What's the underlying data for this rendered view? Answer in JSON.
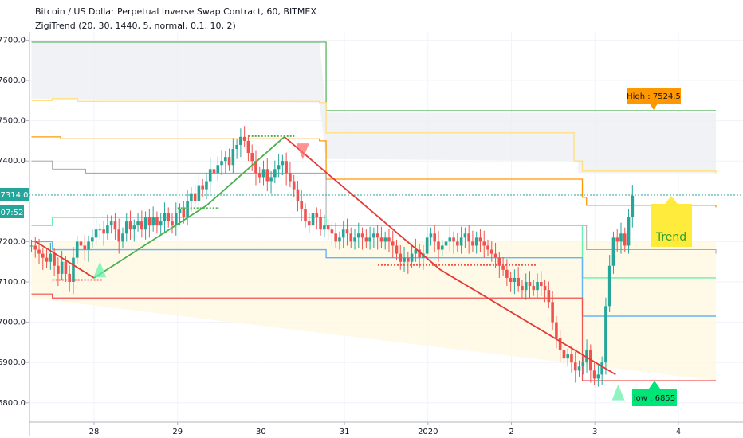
{
  "header": {
    "title": "Bitcoin / US Dollar Perpetual Inverse Swap Contract, 60, BITMEX",
    "indicator": "ZigiTrend (20, 30, 1440, 5, normal, 0.1, 10, 2)"
  },
  "price_scale": {
    "last_price_label": "7314.0",
    "countdown_label": "07:52",
    "last_price_color": "#26a69a"
  },
  "labels": {
    "high": "High : 7524.5",
    "low": "low : 6855",
    "trend": "Trend"
  },
  "colors": {
    "bull": "#26a69a",
    "bear": "#ef5350",
    "green_line": "#4caf50",
    "red_line": "#e53935",
    "orange": "#ff9800",
    "yellow": "#ffe082",
    "blue": "#64b5f6",
    "mint": "#69f0ae",
    "high_box": "#ff9800",
    "low_box": "#00e676",
    "trend_box": "#ffeb3b",
    "trend_text": "#2e9e2e"
  },
  "chart_data": {
    "type": "candlestick",
    "ylim": [
      6770,
      7760
    ],
    "xlim": [
      27.25,
      4.8
    ],
    "y_ticks": [
      {
        "v": 7700,
        "label": "7700.0"
      },
      {
        "v": 7600,
        "label": "7600.0"
      },
      {
        "v": 7500,
        "label": "7500.0"
      },
      {
        "v": 7400,
        "label": "7400.0"
      },
      {
        "v": 7200,
        "label": "7200.0"
      },
      {
        "v": 7100,
        "label": "7100.0"
      },
      {
        "v": 7000,
        "label": "7000.0"
      },
      {
        "v": 6900,
        "label": "6900.0"
      },
      {
        "v": 6800,
        "label": "6800.0"
      }
    ],
    "x_ticks": [
      {
        "d": 28,
        "label": "28"
      },
      {
        "d": 29,
        "label": "29"
      },
      {
        "d": 30,
        "label": "30"
      },
      {
        "d": 31,
        "label": "31"
      },
      {
        "d": 32,
        "label": "2020"
      },
      {
        "d": 33,
        "label": "2"
      },
      {
        "d": 34,
        "label": "3"
      },
      {
        "d": 35,
        "label": "4"
      }
    ],
    "high": 7524.5,
    "low": 6855,
    "last_price": 7314.0,
    "closes": [
      7190,
      7180,
      7170,
      7160,
      7150,
      7170,
      7140,
      7120,
      7150,
      7120,
      7100,
      7160,
      7200,
      7190,
      7180,
      7200,
      7210,
      7230,
      7230,
      7220,
      7240,
      7250,
      7230,
      7200,
      7220,
      7250,
      7230,
      7240,
      7250,
      7230,
      7260,
      7240,
      7260,
      7240,
      7250,
      7270,
      7250,
      7240,
      7270,
      7280,
      7260,
      7300,
      7320,
      7300,
      7340,
      7330,
      7350,
      7380,
      7370,
      7390,
      7400,
      7410,
      7390,
      7430,
      7440,
      7460,
      7450,
      7420,
      7400,
      7370,
      7360,
      7380,
      7350,
      7360,
      7380,
      7390,
      7400,
      7370,
      7350,
      7330,
      7300,
      7280,
      7250,
      7240,
      7270,
      7260,
      7230,
      7240,
      7230,
      7220,
      7200,
      7210,
      7230,
      7220,
      7200,
      7210,
      7220,
      7210,
      7200,
      7210,
      7220,
      7210,
      7200,
      7210,
      7200,
      7190,
      7170,
      7150,
      7160,
      7150,
      7170,
      7180,
      7160,
      7170,
      7210,
      7220,
      7200,
      7180,
      7190,
      7200,
      7210,
      7200,
      7190,
      7210,
      7220,
      7200,
      7190,
      7210,
      7200,
      7190,
      7180,
      7170,
      7160,
      7140,
      7130,
      7110,
      7100,
      7110,
      7090,
      7080,
      7100,
      7090,
      7080,
      7100,
      7090,
      7080,
      7050,
      7000,
      6960,
      6930,
      6910,
      6920,
      6900,
      6880,
      6890,
      6900,
      6930,
      6880,
      6860,
      6870,
      6900,
      7040,
      7140,
      7210,
      7200,
      7220,
      7190,
      7260,
      7314
    ],
    "zigzag": [
      {
        "x": 27.3,
        "y": 7200,
        "c": "red"
      },
      {
        "x": 28.0,
        "y": 7110,
        "c": "red"
      },
      {
        "x": 29.35,
        "y": 7290,
        "c": "green"
      },
      {
        "x": 30.28,
        "y": 7460,
        "c": "green"
      },
      {
        "x": 32.15,
        "y": 7130,
        "c": "red"
      },
      {
        "x": 34.25,
        "y": 6870,
        "c": "red"
      }
    ]
  }
}
